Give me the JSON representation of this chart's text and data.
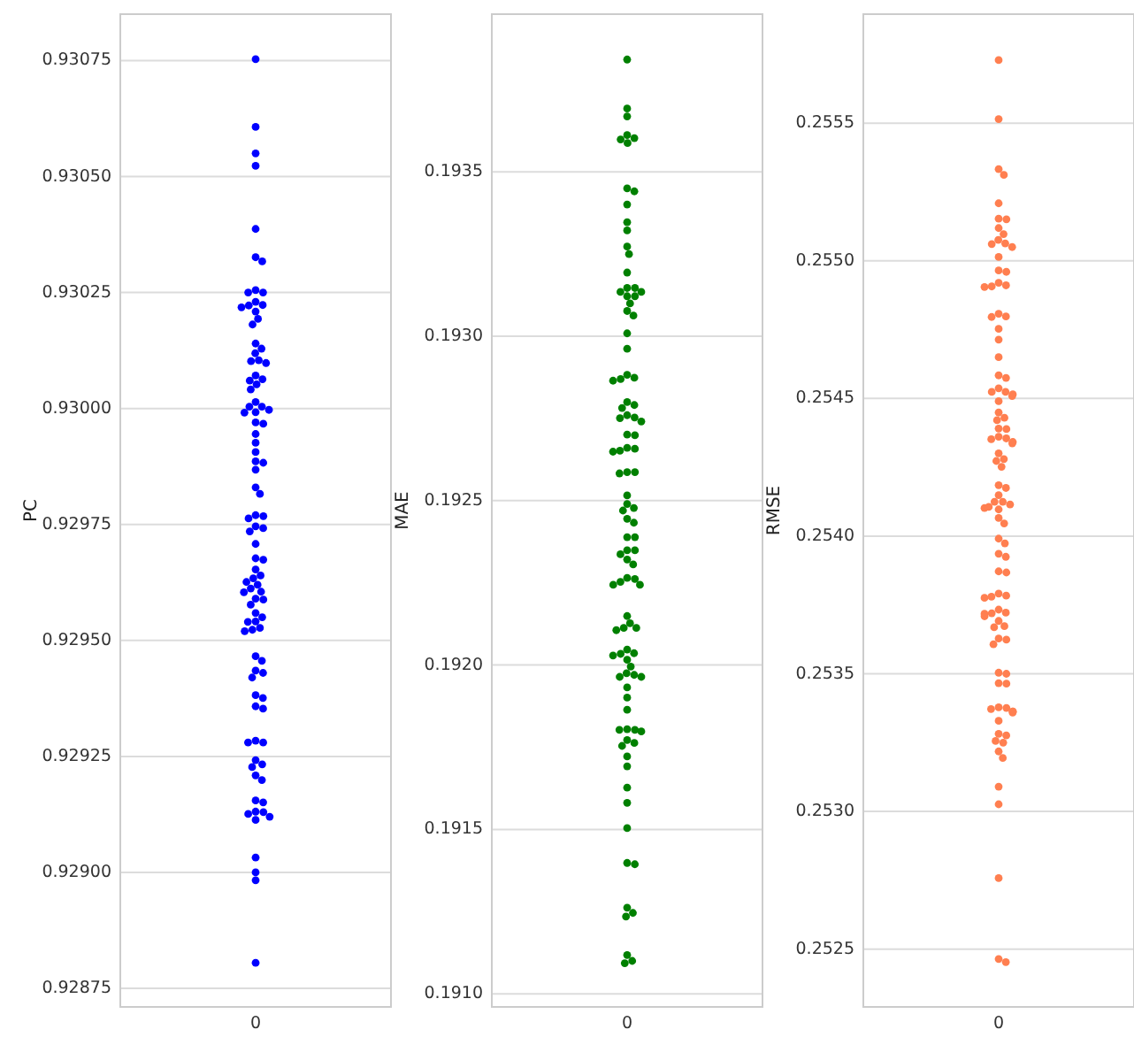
{
  "chart_data": [
    {
      "type": "scatter",
      "ylabel": "PC",
      "categories": [
        "0"
      ],
      "ylim": [
        0.92871,
        0.93085
      ],
      "yticks": [
        {
          "value": 0.92875,
          "label": "0.92875"
        },
        {
          "value": 0.929,
          "label": "0.92900"
        },
        {
          "value": 0.92925,
          "label": "0.92925"
        },
        {
          "value": 0.9295,
          "label": "0.92950"
        },
        {
          "value": 0.92975,
          "label": "0.92975"
        },
        {
          "value": 0.93,
          "label": "0.93000"
        },
        {
          "value": 0.93025,
          "label": "0.93025"
        },
        {
          "value": 0.9305,
          "label": "0.93050"
        },
        {
          "value": 0.93075,
          "label": "0.93075"
        }
      ],
      "grid": "y",
      "marker": "circle",
      "series": [
        {
          "color": "#0000ff",
          "x": [
            "0",
            "0",
            "0",
            "0",
            "0",
            "0",
            "0",
            "0",
            "0",
            "0",
            "0",
            "0",
            "0",
            "0",
            "0",
            "0",
            "0",
            "0",
            "0",
            "0",
            "0",
            "0",
            "0",
            "0",
            "0",
            "0",
            "0",
            "0",
            "0",
            "0",
            "0",
            "0",
            "0",
            "0",
            "0",
            "0",
            "0",
            "0",
            "0",
            "0",
            "0",
            "0",
            "0",
            "0",
            "0",
            "0",
            "0",
            "0",
            "0",
            "0",
            "0",
            "0",
            "0",
            "0",
            "0",
            "0",
            "0",
            "0",
            "0",
            "0",
            "0",
            "0",
            "0",
            "0",
            "0",
            "0",
            "0",
            "0",
            "0",
            "0",
            "0",
            "0",
            "0",
            "0",
            "0",
            "0",
            "0",
            "0",
            "0",
            "0",
            "0",
            "0",
            "0",
            "0",
            "0",
            "0",
            "0",
            "0",
            "0",
            "0",
            "0",
            "0",
            "0",
            "0",
            "0",
            "0",
            "0",
            "0",
            "0"
          ],
          "values": [
            0.930607,
            0.930387,
            0.930317,
            0.93025,
            0.93023,
            0.930222,
            0.930209,
            0.930181,
            0.930129,
            0.930104,
            0.930098,
            0.93006,
            0.930041,
            0.930004,
            0.929997,
            0.929991,
            0.929967,
            0.929926,
            0.929886,
            0.929883,
            0.929816,
            0.929768,
            0.929746,
            0.929742,
            0.929708,
            0.929653,
            0.929634,
            0.92962,
            0.929605,
            0.92959,
            0.929577,
            0.92955,
            0.92954,
            0.929523,
            0.92952,
            0.929456,
            0.92942,
            0.929376,
            0.929353,
            0.92928,
            0.929242,
            0.929227,
            0.929199,
            0.929151,
            0.92913,
            0.92912,
            0.929113,
            0.928983,
            0.928805,
            0.930753,
            0.93055,
            0.930523,
            0.930326,
            0.930255,
            0.93025,
            0.930223,
            0.930218,
            0.930193,
            0.93014,
            0.930119,
            0.930102,
            0.930071,
            0.930063,
            0.930052,
            0.930014,
            0.930004,
            0.929992,
            0.92997,
            0.929945,
            0.929906,
            0.929868,
            0.92983,
            0.92977,
            0.929763,
            0.929735,
            0.929677,
            0.929674,
            0.92964,
            0.929626,
            0.929612,
            0.929604,
            0.929588,
            0.929559,
            0.929541,
            0.929527,
            0.929466,
            0.929435,
            0.92943,
            0.929382,
            0.929358,
            0.929284,
            0.92928,
            0.929233,
            0.929209,
            0.929155,
            0.929131,
            0.929126,
            0.929032,
            0.929
          ]
        }
      ]
    },
    {
      "type": "scatter",
      "ylabel": "MAE",
      "categories": [
        "0"
      ],
      "ylim": [
        0.19096,
        0.19398
      ],
      "yticks": [
        {
          "value": 0.191,
          "label": "0.1910"
        },
        {
          "value": 0.1915,
          "label": "0.1915"
        },
        {
          "value": 0.192,
          "label": "0.1920"
        },
        {
          "value": 0.1925,
          "label": "0.1925"
        },
        {
          "value": 0.193,
          "label": "0.1930"
        },
        {
          "value": 0.1935,
          "label": "0.1935"
        }
      ],
      "grid": "y",
      "marker": "circle",
      "series": [
        {
          "color": "#008000",
          "x": [
            "0",
            "0",
            "0",
            "0",
            "0",
            "0",
            "0",
            "0",
            "0",
            "0",
            "0",
            "0",
            "0",
            "0",
            "0",
            "0",
            "0",
            "0",
            "0",
            "0",
            "0",
            "0",
            "0",
            "0",
            "0",
            "0",
            "0",
            "0",
            "0",
            "0",
            "0",
            "0",
            "0",
            "0",
            "0",
            "0",
            "0",
            "0",
            "0",
            "0",
            "0",
            "0",
            "0",
            "0",
            "0",
            "0",
            "0",
            "0",
            "0",
            "0",
            "0",
            "0",
            "0",
            "0",
            "0",
            "0",
            "0",
            "0",
            "0",
            "0",
            "0",
            "0",
            "0",
            "0",
            "0",
            "0",
            "0",
            "0",
            "0",
            "0",
            "0",
            "0",
            "0",
            "0",
            "0",
            "0",
            "0",
            "0",
            "0",
            "0",
            "0",
            "0",
            "0",
            "0",
            "0",
            "0",
            "0",
            "0",
            "0",
            "0",
            "0",
            "0",
            "0",
            "0",
            "0",
            "0",
            "0",
            "0",
            "0",
            "0",
            "0",
            "0"
          ],
          "values": [
            0.193693,
            0.193612,
            0.193599,
            0.193588,
            0.193441,
            0.193347,
            0.193273,
            0.193194,
            0.193147,
            0.193135,
            0.193122,
            0.1931,
            0.193063,
            0.192962,
            0.192874,
            0.192865,
            0.192791,
            0.19276,
            0.192751,
            0.192701,
            0.192661,
            0.192652,
            0.192587,
            0.192516,
            0.192478,
            0.192445,
            0.192389,
            0.192349,
            0.192321,
            0.192265,
            0.192244,
            0.192149,
            0.192113,
            0.192106,
            0.192036,
            0.192029,
            0.191995,
            0.19197,
            0.191964,
            0.191901,
            0.191805,
            0.191803,
            0.191798,
            0.191763,
            0.191692,
            0.191581,
            0.191504,
            0.191262,
            0.191235,
            0.1911,
            0.191093,
            0.191118,
            0.191246,
            0.191394,
            0.191398,
            0.191627,
            0.191722,
            0.191754,
            0.191772,
            0.191803,
            0.191864,
            0.191932,
            0.191964,
            0.191975,
            0.192016,
            0.192034,
            0.192047,
            0.192113,
            0.192127,
            0.193842,
            0.193669,
            0.193603,
            0.19345,
            0.193401,
            0.193322,
            0.19325,
            0.193147,
            0.193135,
            0.193122,
            0.193077,
            0.193009,
            0.192883,
            0.19287,
            0.1928,
            0.192782,
            0.192753,
            0.192741,
            0.192699,
            0.192658,
            0.192649,
            0.192587,
            0.192583,
            0.19249,
            0.19247,
            0.192433,
            0.192389,
            0.192349,
            0.192337,
            0.192306,
            0.192262,
            0.192253,
            0.192244
          ]
        }
      ]
    },
    {
      "type": "scatter",
      "ylabel": "RMSE",
      "categories": [
        "0"
      ],
      "ylim": [
        0.25229,
        0.255896
      ],
      "yticks": [
        {
          "value": 0.2525,
          "label": "0.2525"
        },
        {
          "value": 0.253,
          "label": "0.2530"
        },
        {
          "value": 0.2535,
          "label": "0.2535"
        },
        {
          "value": 0.254,
          "label": "0.2540"
        },
        {
          "value": 0.2545,
          "label": "0.2545"
        },
        {
          "value": 0.255,
          "label": "0.2550"
        },
        {
          "value": 0.2555,
          "label": "0.2555"
        }
      ],
      "grid": "y",
      "marker": "circle",
      "series": [
        {
          "color": "#ff7f50",
          "x": [
            "0",
            "0",
            "0",
            "0",
            "0",
            "0",
            "0",
            "0",
            "0",
            "0",
            "0",
            "0",
            "0",
            "0",
            "0",
            "0",
            "0",
            "0",
            "0",
            "0",
            "0",
            "0",
            "0",
            "0",
            "0",
            "0",
            "0",
            "0",
            "0",
            "0",
            "0",
            "0",
            "0",
            "0",
            "0",
            "0",
            "0",
            "0",
            "0",
            "0",
            "0",
            "0",
            "0",
            "0",
            "0",
            "0",
            "0",
            "0",
            "0",
            "0",
            "0",
            "0",
            "0",
            "0",
            "0",
            "0",
            "0",
            "0",
            "0",
            "0",
            "0",
            "0",
            "0",
            "0",
            "0",
            "0",
            "0",
            "0",
            "0",
            "0",
            "0",
            "0",
            "0",
            "0",
            "0",
            "0",
            "0",
            "0",
            "0",
            "0",
            "0",
            "0",
            "0",
            "0",
            "0",
            "0",
            "0",
            "0",
            "0",
            "0",
            "0",
            "0",
            "0",
            "0",
            "0",
            "0",
            "0",
            "0",
            "0",
            "0",
            "0",
            "0"
          ],
          "values": [
            0.255729,
            0.255333,
            0.255209,
            0.255151,
            0.255097,
            0.255061,
            0.255014,
            0.25496,
            0.254911,
            0.254905,
            0.254798,
            0.254753,
            0.25465,
            0.254575,
            0.254524,
            0.254515,
            0.25449,
            0.25443,
            0.254391,
            0.254361,
            0.254352,
            0.254342,
            0.25428,
            0.254252,
            0.254175,
            0.254125,
            0.254115,
            0.254102,
            0.254046,
            0.253974,
            0.253925,
            0.253868,
            0.253784,
            0.253776,
            0.253722,
            0.253718,
            0.253692,
            0.253669,
            0.253624,
            0.253504,
            0.253466,
            0.253378,
            0.253372,
            0.253363,
            0.253329,
            0.253276,
            0.25325,
            0.253194,
            0.253026,
            0.252464,
            0.252453,
            0.252758,
            0.25309,
            0.253218,
            0.253256,
            0.253282,
            0.253359,
            0.253363,
            0.253376,
            0.253464,
            0.2535,
            0.253607,
            0.253628,
            0.253673,
            0.253709,
            0.25372,
            0.253733,
            0.25378,
            0.253791,
            0.255515,
            0.255312,
            0.255153,
            0.255119,
            0.255076,
            0.255063,
            0.25505,
            0.254965,
            0.25492,
            0.254907,
            0.254808,
            0.254796,
            0.254714,
            0.254584,
            0.254537,
            0.254524,
            0.254509,
            0.254449,
            0.254421,
            0.254389,
            0.254355,
            0.254337,
            0.254301,
            0.254273,
            0.254185,
            0.254149,
            0.254125,
            0.254106,
            0.254097,
            0.254066,
            0.253991,
            0.253936,
            0.253872
          ]
        }
      ]
    }
  ]
}
